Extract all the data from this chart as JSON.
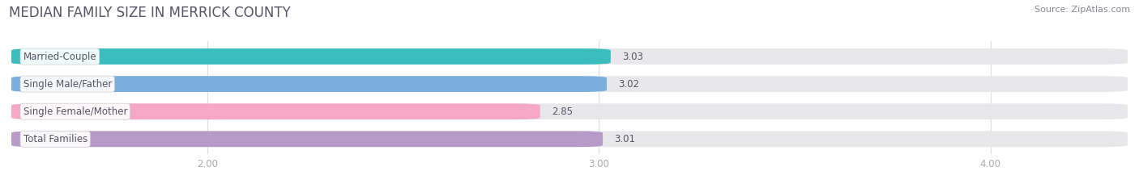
{
  "title": "MEDIAN FAMILY SIZE IN MERRICK COUNTY",
  "source": "Source: ZipAtlas.com",
  "categories": [
    "Married-Couple",
    "Single Male/Father",
    "Single Female/Mother",
    "Total Families"
  ],
  "values": [
    3.03,
    3.02,
    2.85,
    3.01
  ],
  "colors": [
    "#3bbcbe",
    "#7aaede",
    "#f4a8c5",
    "#b89ac8"
  ],
  "xlim": [
    1.5,
    4.35
  ],
  "xticks": [
    2.0,
    3.0,
    4.0
  ],
  "xtick_labels": [
    "2.00",
    "3.00",
    "4.00"
  ],
  "bar_height": 0.58,
  "background_color": "#ffffff",
  "bar_bg_color": "#e8e8eb",
  "title_fontsize": 12,
  "label_fontsize": 8.5,
  "value_fontsize": 8.5,
  "source_fontsize": 8.0,
  "title_color": "#555566",
  "source_color": "#888899",
  "tick_color": "#aaaaaa",
  "label_text_color": "#555566",
  "value_text_color": "#555566"
}
